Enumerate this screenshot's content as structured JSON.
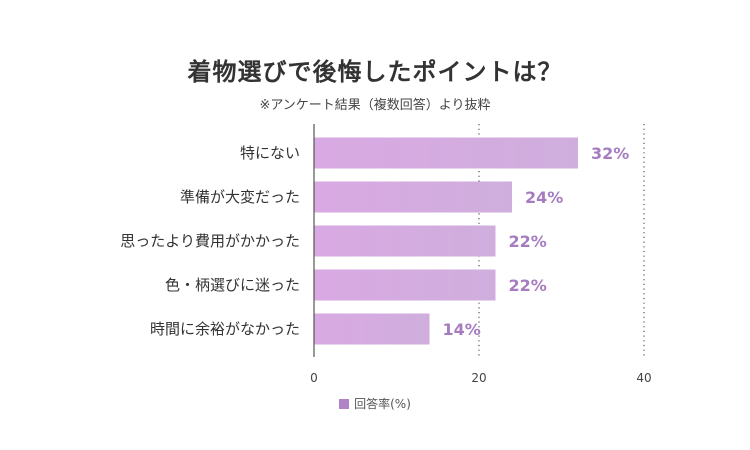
{
  "chart_data": {
    "type": "bar",
    "orientation": "horizontal",
    "title": "着物選びで後悔したポイントは？",
    "subtitle": "※アンケート結果（複数回答）より抜粋",
    "categories": [
      "特にない",
      "準備が大変だった",
      "思ったより費用がかかった",
      "色・柄選びに迷った",
      "時間に余裕がなかった"
    ],
    "series": [
      {
        "name": "回答率(%)",
        "values": [
          32,
          24,
          22,
          22,
          14
        ],
        "labels": [
          "32%",
          "24%",
          "22%",
          "22%",
          "14%"
        ]
      }
    ],
    "xlim": [
      0,
      40
    ],
    "xticks": [
      0,
      20,
      40
    ],
    "xtick_labels": [
      "0",
      "20",
      "40"
    ],
    "grid": "dotted-vertical",
    "legend": "bottom-center"
  },
  "colors": {
    "bar_start": "#d9a9e3",
    "bar_end": "#cfaedd",
    "value_label": "#a57cc0",
    "legend_swatch": "#b083c4",
    "axis": "#555555",
    "grid": "#555555"
  }
}
